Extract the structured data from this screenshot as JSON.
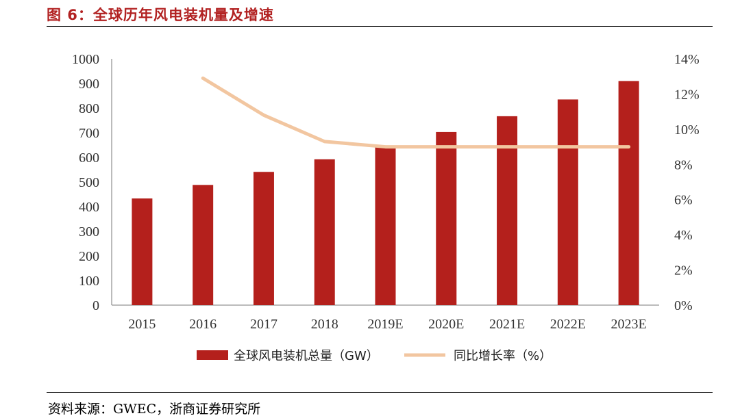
{
  "header": {
    "title": "图 6：全球历年风电装机量及增速"
  },
  "footer": {
    "source": "资料来源：GWEC，浙商证券研究所"
  },
  "colors": {
    "bar": "#b4201c",
    "line": "#f2c6a0",
    "title": "#b22222"
  },
  "chart_data": {
    "type": "bar",
    "title": "全球历年风电装机量及增速",
    "categories": [
      "2015",
      "2016",
      "2017",
      "2018",
      "2019E",
      "2020E",
      "2021E",
      "2022E",
      "2023E"
    ],
    "series": [
      {
        "name": "全球风电装机总量（GW）",
        "type": "bar",
        "axis": "left",
        "values": [
          433,
          488,
          541,
          592,
          645,
          703,
          767,
          835,
          910
        ]
      },
      {
        "name": "同比增长率（%）",
        "type": "line",
        "axis": "right",
        "values": [
          null,
          12.9,
          10.8,
          9.3,
          9.0,
          9.0,
          9.0,
          9.0,
          9.0
        ]
      }
    ],
    "y_left": {
      "range": [
        0,
        1000
      ],
      "ticks": [
        "0",
        "100",
        "200",
        "300",
        "400",
        "500",
        "600",
        "700",
        "800",
        "900",
        "1000"
      ]
    },
    "y_right": {
      "range": [
        0,
        14
      ],
      "ticks": [
        "0%",
        "2%",
        "4%",
        "6%",
        "8%",
        "10%",
        "12%",
        "14%"
      ]
    },
    "legend_position": "bottom",
    "grid": false
  }
}
